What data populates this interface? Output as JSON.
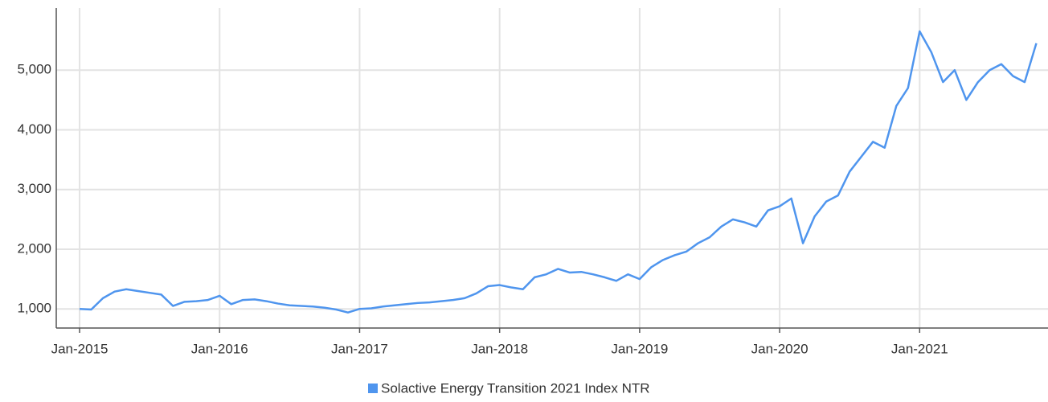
{
  "chart_data": {
    "type": "line",
    "x": [
      "2015-01",
      "2015-02",
      "2015-03",
      "2015-04",
      "2015-05",
      "2015-06",
      "2015-07",
      "2015-08",
      "2015-09",
      "2015-10",
      "2015-11",
      "2015-12",
      "2016-01",
      "2016-02",
      "2016-03",
      "2016-04",
      "2016-05",
      "2016-06",
      "2016-07",
      "2016-08",
      "2016-09",
      "2016-10",
      "2016-11",
      "2016-12",
      "2017-01",
      "2017-02",
      "2017-03",
      "2017-04",
      "2017-05",
      "2017-06",
      "2017-07",
      "2017-08",
      "2017-09",
      "2017-10",
      "2017-11",
      "2017-12",
      "2018-01",
      "2018-02",
      "2018-03",
      "2018-04",
      "2018-05",
      "2018-06",
      "2018-07",
      "2018-08",
      "2018-09",
      "2018-10",
      "2018-11",
      "2018-12",
      "2019-01",
      "2019-02",
      "2019-03",
      "2019-04",
      "2019-05",
      "2019-06",
      "2019-07",
      "2019-08",
      "2019-09",
      "2019-10",
      "2019-11",
      "2019-12",
      "2020-01",
      "2020-02",
      "2020-03",
      "2020-04",
      "2020-05",
      "2020-06",
      "2020-07",
      "2020-08",
      "2020-09",
      "2020-10",
      "2020-11",
      "2020-12",
      "2021-01",
      "2021-02",
      "2021-03",
      "2021-04",
      "2021-05",
      "2021-06",
      "2021-07",
      "2021-08",
      "2021-09",
      "2021-10",
      "2021-11"
    ],
    "series": [
      {
        "name": "Solactive Energy Transition 2021 Index NTR",
        "color": "#4f95ee",
        "values": [
          1000,
          990,
          1180,
          1290,
          1330,
          1300,
          1270,
          1240,
          1050,
          1120,
          1130,
          1150,
          1220,
          1080,
          1150,
          1160,
          1130,
          1090,
          1060,
          1050,
          1040,
          1020,
          990,
          940,
          1000,
          1010,
          1040,
          1060,
          1080,
          1100,
          1110,
          1130,
          1150,
          1180,
          1260,
          1380,
          1400,
          1360,
          1330,
          1530,
          1580,
          1670,
          1610,
          1620,
          1580,
          1530,
          1470,
          1580,
          1500,
          1700,
          1820,
          1900,
          1960,
          2100,
          2200,
          2380,
          2500,
          2450,
          2380,
          2650,
          2720,
          2850,
          2100,
          2550,
          2800,
          2900,
          3300,
          3550,
          3800,
          3700,
          4400,
          4700,
          5650,
          5300,
          4800,
          5000,
          4500,
          4800,
          5000,
          5100,
          4900,
          4800,
          5450
        ]
      }
    ],
    "xlim": [
      "2014-11",
      "2021-12"
    ],
    "xticks": [
      {
        "value": "2015-01",
        "label": "Jan-2015"
      },
      {
        "value": "2016-01",
        "label": "Jan-2016"
      },
      {
        "value": "2017-01",
        "label": "Jan-2017"
      },
      {
        "value": "2018-01",
        "label": "Jan-2018"
      },
      {
        "value": "2019-01",
        "label": "Jan-2019"
      },
      {
        "value": "2020-01",
        "label": "Jan-2020"
      },
      {
        "value": "2021-01",
        "label": "Jan-2021"
      }
    ],
    "ylim": [
      680,
      6040
    ],
    "yticks": [
      {
        "value": 1000,
        "label": "1,000"
      },
      {
        "value": 2000,
        "label": "2,000"
      },
      {
        "value": 3000,
        "label": "3,000"
      },
      {
        "value": 4000,
        "label": "4,000"
      },
      {
        "value": 5000,
        "label": "5,000"
      }
    ],
    "grid": true,
    "legend": "bottom"
  }
}
